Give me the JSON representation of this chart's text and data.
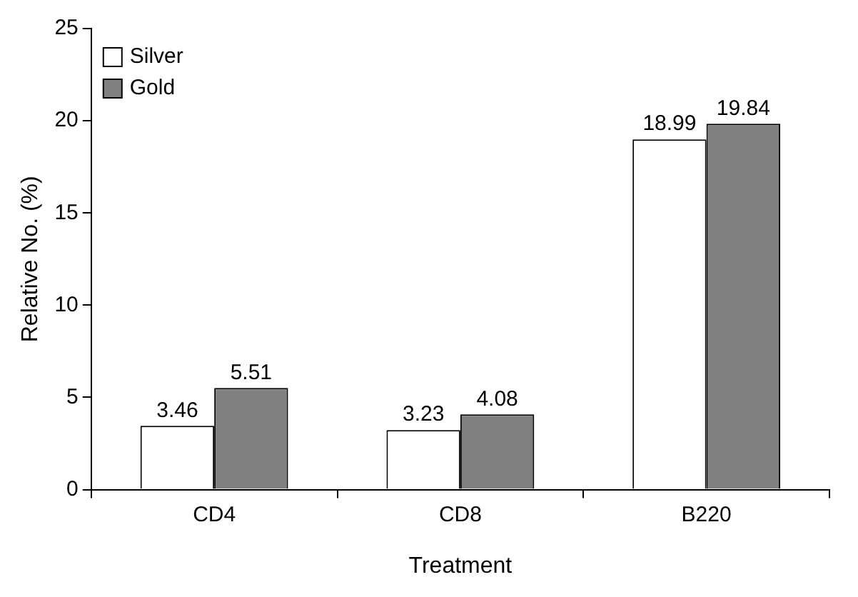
{
  "chart_data": {
    "type": "bar",
    "xlabel": "Treatment",
    "ylabel": "Relative No. (%)",
    "categories": [
      "CD4",
      "CD8",
      "B220"
    ],
    "series": [
      {
        "name": "Silver",
        "color": "#ffffff",
        "values": [
          3.46,
          3.23,
          18.99
        ]
      },
      {
        "name": "Gold",
        "color": "#808080",
        "values": [
          5.51,
          4.08,
          19.84
        ]
      }
    ],
    "ylim": [
      0,
      25
    ],
    "yticks": [
      0,
      5,
      10,
      15,
      20,
      25
    ],
    "grid": false,
    "legend": "top left",
    "data_labels": true
  }
}
